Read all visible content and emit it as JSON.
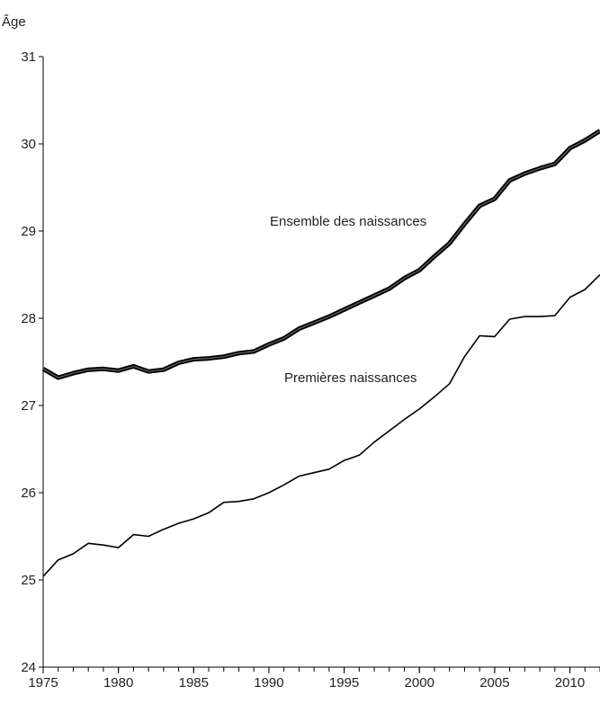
{
  "chart_data": {
    "type": "line",
    "title": "",
    "ylabel": "Âge",
    "xlabel": "",
    "xlim": [
      1975,
      2012
    ],
    "ylim": [
      24,
      31
    ],
    "xticks": [
      1975,
      1980,
      1985,
      1990,
      1995,
      2000,
      2005,
      2010
    ],
    "yticks": [
      24,
      25,
      26,
      27,
      28,
      29,
      30,
      31
    ],
    "grid": false,
    "legend": "none",
    "x": [
      1975,
      1976,
      1977,
      1978,
      1979,
      1980,
      1981,
      1982,
      1983,
      1984,
      1985,
      1986,
      1987,
      1988,
      1989,
      1990,
      1991,
      1992,
      1993,
      1994,
      1995,
      1996,
      1997,
      1998,
      1999,
      2000,
      2001,
      2002,
      2003,
      2004,
      2005,
      2006,
      2007,
      2008,
      2009,
      2010,
      2011,
      2012
    ],
    "series": [
      {
        "name": "Ensemble des naissances",
        "style": "thick",
        "values": [
          27.42,
          27.32,
          27.37,
          27.41,
          27.42,
          27.4,
          27.45,
          27.39,
          27.41,
          27.49,
          27.53,
          27.54,
          27.56,
          27.6,
          27.62,
          27.7,
          27.77,
          27.88,
          27.95,
          28.02,
          28.1,
          28.18,
          28.26,
          28.34,
          28.46,
          28.55,
          28.71,
          28.86,
          29.08,
          29.29,
          29.37,
          29.58,
          29.66,
          29.72,
          29.77,
          29.95,
          30.04,
          30.15
        ]
      },
      {
        "name": "Premières naissances",
        "style": "thin",
        "values": [
          25.04,
          25.23,
          25.3,
          25.42,
          25.4,
          25.37,
          25.52,
          25.5,
          25.58,
          25.65,
          25.7,
          25.77,
          25.89,
          25.9,
          25.93,
          26.0,
          26.09,
          26.19,
          26.23,
          26.27,
          26.37,
          26.43,
          26.58,
          26.71,
          26.84,
          26.96,
          27.1,
          27.25,
          27.56,
          27.8,
          27.79,
          27.99,
          28.02,
          28.02,
          28.03,
          28.24,
          28.33,
          28.5
        ]
      }
    ],
    "annotations": [
      "Ensemble des naissances",
      "Premières naissances"
    ]
  }
}
